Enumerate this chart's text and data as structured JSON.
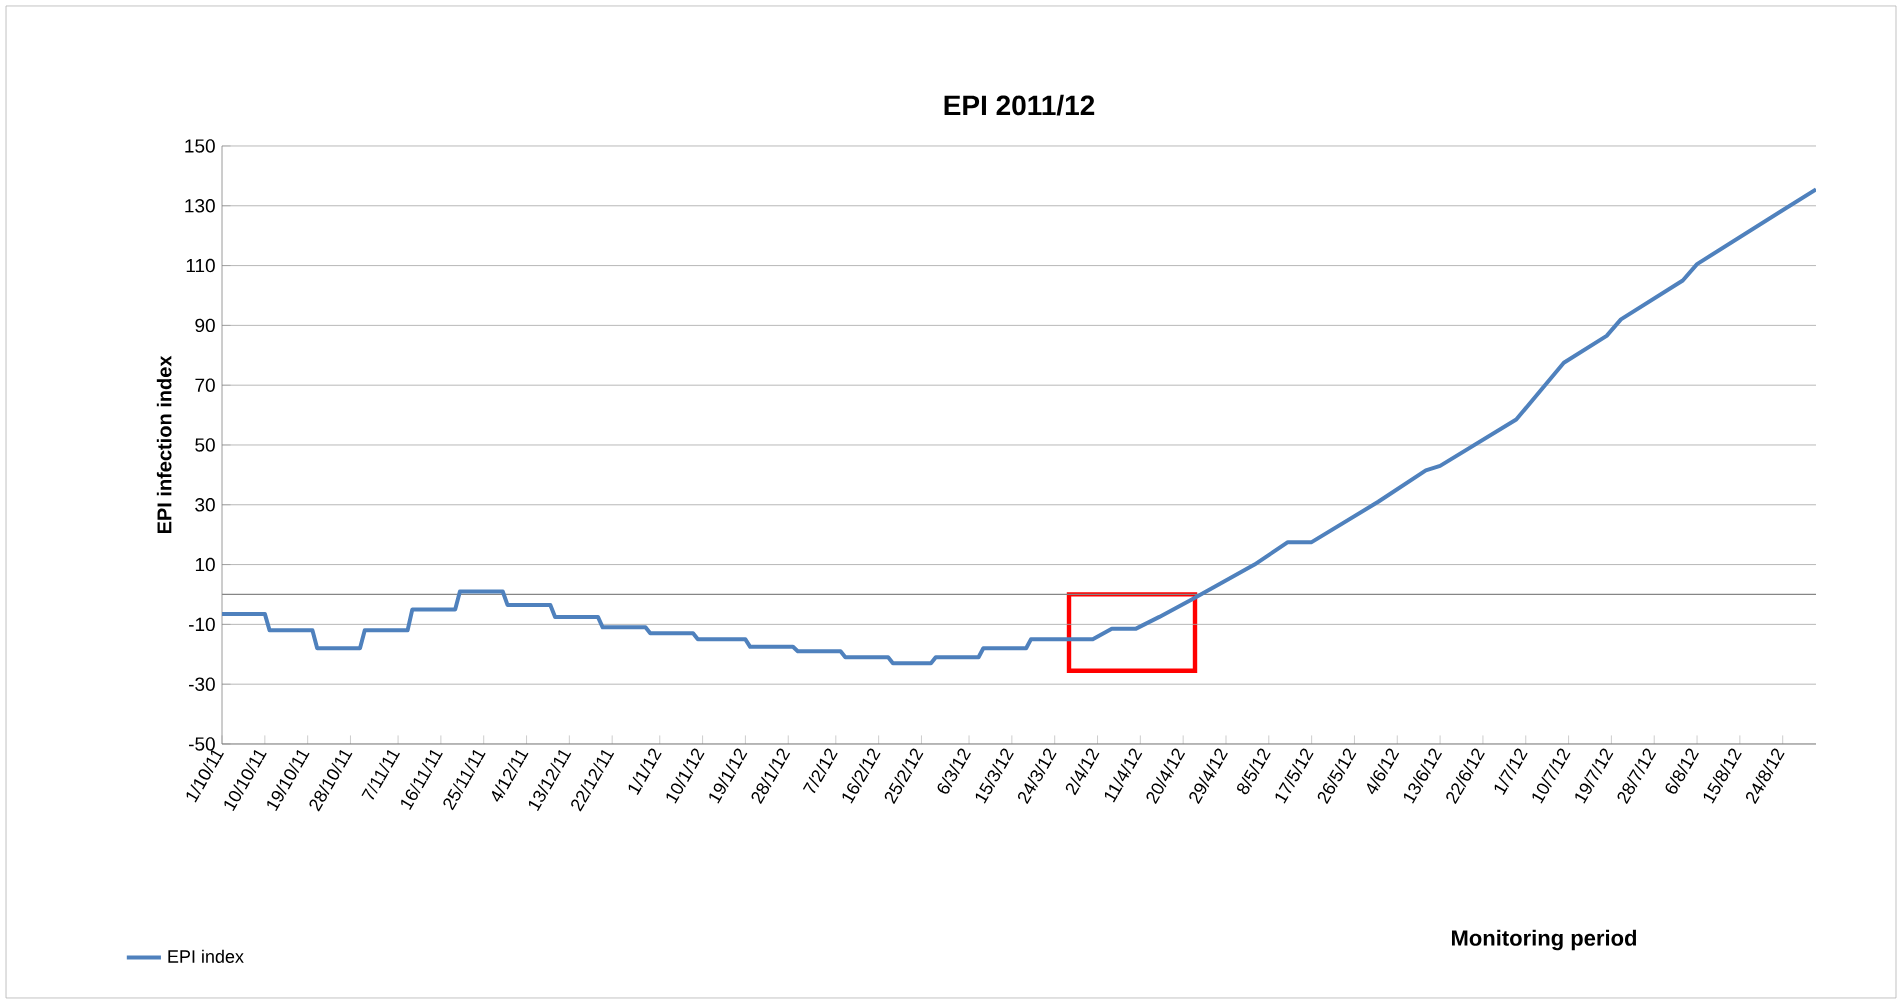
{
  "chart_data": {
    "type": "line",
    "title": "EPI 2011/12",
    "annotations": [
      "Monitoring period"
    ],
    "ylabel": "EPI infection index",
    "x": [
      "2011-10-01",
      "2011-10-10",
      "2011-10-11",
      "2011-10-20",
      "2011-10-21",
      "2011-10-30",
      "2011-10-31",
      "2011-11-09",
      "2011-11-10",
      "2011-11-19",
      "2011-11-20",
      "2011-11-29",
      "2011-11-30",
      "2011-12-09",
      "2011-12-10",
      "2011-12-19",
      "2011-12-20",
      "2011-12-29",
      "2011-12-30",
      "2012-01-08",
      "2012-01-09",
      "2012-01-19",
      "2012-01-20",
      "2012-01-29",
      "2012-01-30",
      "2012-02-08",
      "2012-02-09",
      "2012-02-18",
      "2012-02-19",
      "2012-02-27",
      "2012-02-28",
      "2012-03-08",
      "2012-03-09",
      "2012-03-18",
      "2012-03-19",
      "2012-04-01",
      "2012-04-05",
      "2012-04-10",
      "2012-04-15",
      "2012-04-22",
      "2012-05-05",
      "2012-05-12",
      "2012-05-17",
      "2012-05-31",
      "2012-06-10",
      "2012-06-13",
      "2012-06-29",
      "2012-07-09",
      "2012-07-18",
      "2012-07-21",
      "2012-08-03",
      "2012-08-06",
      "2012-08-31"
    ],
    "series": [
      {
        "name": "EPI index",
        "color": "#4f81bd",
        "values": [
          -6.5,
          -6.5,
          -12,
          -12,
          -18,
          -18,
          -12,
          -12,
          -5,
          -5,
          1,
          1,
          -3.5,
          -3.5,
          -7.5,
          -7.5,
          -11,
          -11,
          -13,
          -13,
          -15,
          -15,
          -17.5,
          -17.5,
          -19,
          -19,
          -21,
          -21,
          -23,
          -23,
          -21,
          -21,
          -18,
          -18,
          -15,
          -15,
          -11.5,
          -11.5,
          -7.5,
          -1.5,
          10,
          17.5,
          17.5,
          31,
          41.5,
          43,
          58.5,
          77.5,
          86.5,
          92,
          105,
          110.5,
          135.5
        ]
      }
    ],
    "xlim": [
      "2011-10-01",
      "2012-08-31"
    ],
    "xticks": [
      {
        "value": "2011-10-01",
        "label": "1/10/11"
      },
      {
        "value": "2011-10-10",
        "label": "10/10/11"
      },
      {
        "value": "2011-10-19",
        "label": "19/10/11"
      },
      {
        "value": "2011-10-28",
        "label": "28/10/11"
      },
      {
        "value": "2011-11-07",
        "label": "7/11/11"
      },
      {
        "value": "2011-11-16",
        "label": "16/11/11"
      },
      {
        "value": "2011-11-25",
        "label": "25/11/11"
      },
      {
        "value": "2011-12-04",
        "label": "4/12/11"
      },
      {
        "value": "2011-12-13",
        "label": "13/12/11"
      },
      {
        "value": "2011-12-22",
        "label": "22/12/11"
      },
      {
        "value": "2012-01-01",
        "label": "1/1/12"
      },
      {
        "value": "2012-01-10",
        "label": "10/1/12"
      },
      {
        "value": "2012-01-19",
        "label": "19/1/12"
      },
      {
        "value": "2012-01-28",
        "label": "28/1/12"
      },
      {
        "value": "2012-02-07",
        "label": "7/2/12"
      },
      {
        "value": "2012-02-16",
        "label": "16/2/12"
      },
      {
        "value": "2012-02-25",
        "label": "25/2/12"
      },
      {
        "value": "2012-03-06",
        "label": "6/3/12"
      },
      {
        "value": "2012-03-15",
        "label": "15/3/12"
      },
      {
        "value": "2012-03-24",
        "label": "24/3/12"
      },
      {
        "value": "2012-04-02",
        "label": "2/4/12"
      },
      {
        "value": "2012-04-11",
        "label": "11/4/12"
      },
      {
        "value": "2012-04-20",
        "label": "20/4/12"
      },
      {
        "value": "2012-04-29",
        "label": "29/4/12"
      },
      {
        "value": "2012-05-08",
        "label": "8/5/12"
      },
      {
        "value": "2012-05-17",
        "label": "17/5/12"
      },
      {
        "value": "2012-05-26",
        "label": "26/5/12"
      },
      {
        "value": "2012-06-04",
        "label": "4/6/12"
      },
      {
        "value": "2012-06-13",
        "label": "13/6/12"
      },
      {
        "value": "2012-06-22",
        "label": "22/6/12"
      },
      {
        "value": "2012-07-01",
        "label": "1/7/12"
      },
      {
        "value": "2012-07-10",
        "label": "10/7/12"
      },
      {
        "value": "2012-07-19",
        "label": "19/7/12"
      },
      {
        "value": "2012-07-28",
        "label": "28/7/12"
      },
      {
        "value": "2012-08-06",
        "label": "6/8/12"
      },
      {
        "value": "2012-08-15",
        "label": "15/8/12"
      },
      {
        "value": "2012-08-24",
        "label": "24/8/12"
      }
    ],
    "ylim": [
      -50,
      150
    ],
    "yticks": [
      -50,
      -30,
      -10,
      10,
      30,
      50,
      70,
      90,
      110,
      130,
      150
    ],
    "ref_lines": [
      {
        "axis": "y",
        "value": 0,
        "color": "#868686"
      }
    ],
    "grid": "y",
    "legend": "bottom left",
    "marker": "none",
    "line_style": "solid"
  }
}
